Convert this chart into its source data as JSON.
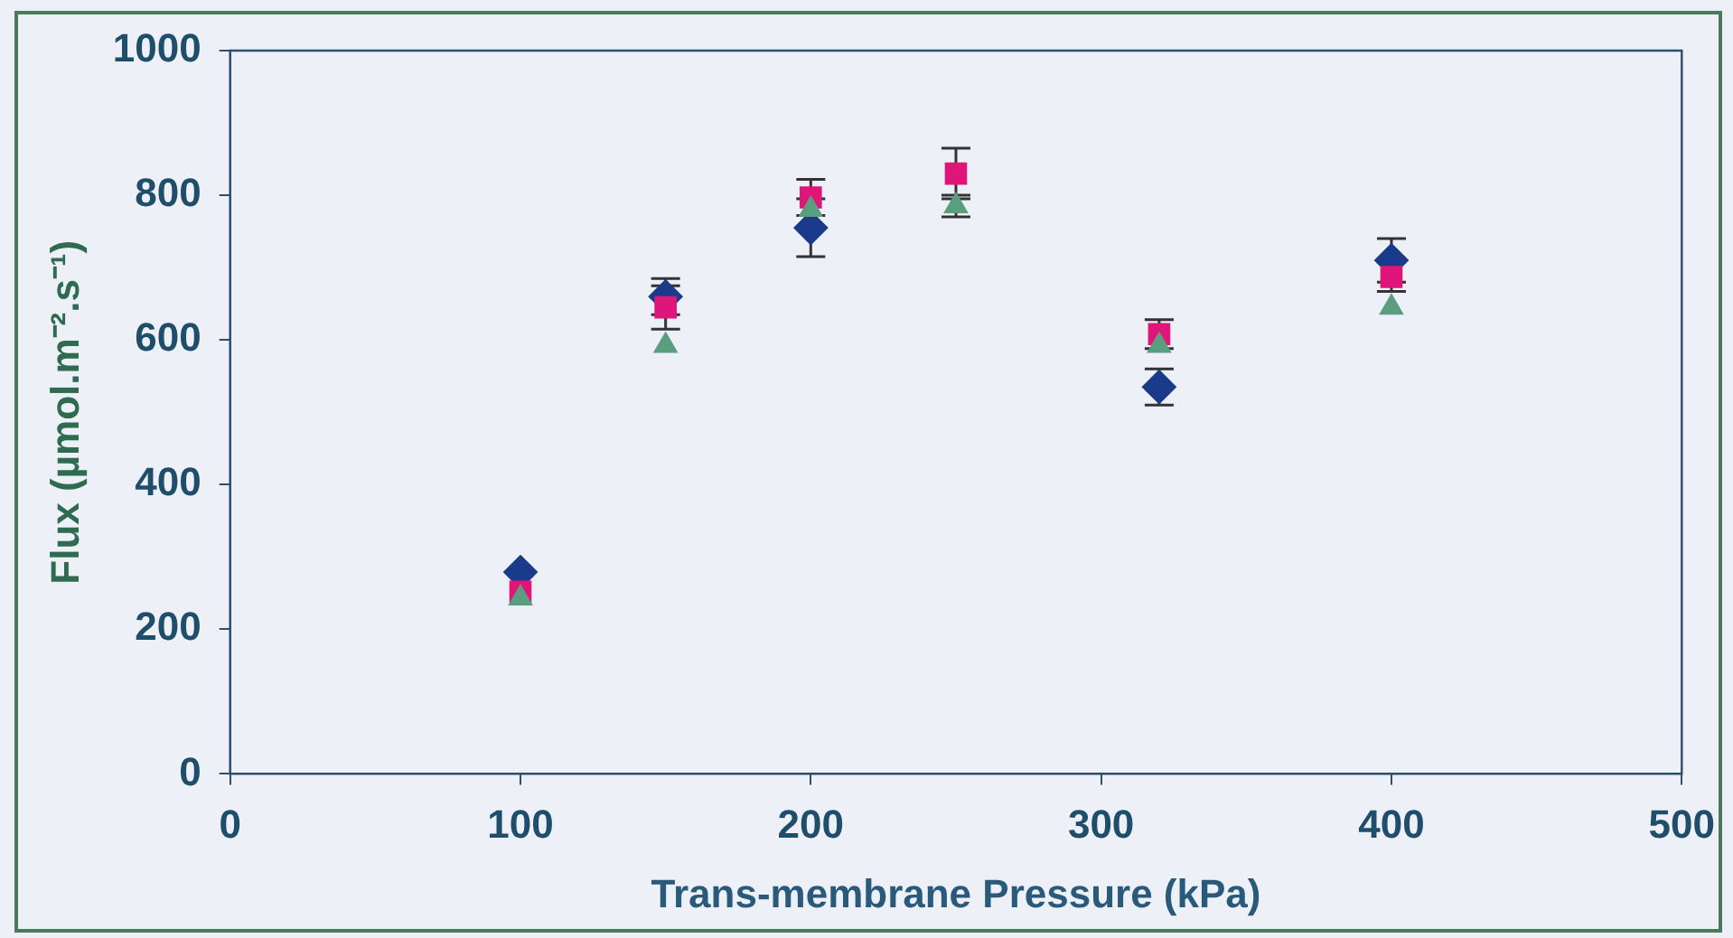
{
  "chart_data": {
    "type": "scatter",
    "xlabel": "Trans-membrane Pressure (kPa)",
    "ylabel": "Flux (µmol.m⁻².s⁻¹)",
    "xlim": [
      0,
      500
    ],
    "xticks": [
      0,
      100,
      200,
      300,
      400,
      500
    ],
    "ylim": [
      0,
      1000
    ],
    "yticks": [
      0,
      200,
      400,
      600,
      800,
      1000
    ],
    "grid": false,
    "legend": false,
    "series": [
      {
        "color": "#1a3a8a",
        "marker": "diamond",
        "x": [
          100,
          150,
          200,
          250,
          320,
          400
        ],
        "values": [
          279,
          660,
          755,
          null,
          535,
          710
        ],
        "errors": [
          null,
          25,
          40,
          null,
          25,
          30
        ]
      },
      {
        "color": "#e0157a",
        "marker": "square",
        "x": [
          100,
          150,
          200,
          250,
          320,
          400
        ],
        "values": [
          252,
          645,
          797,
          830,
          608,
          687
        ],
        "errors": [
          null,
          30,
          25,
          35,
          20,
          20
        ]
      },
      {
        "color": "#5a9e80",
        "marker": "triangle",
        "x": [
          100,
          150,
          200,
          250,
          320,
          400
        ],
        "values": [
          243,
          592,
          780,
          785,
          592,
          645
        ],
        "errors": [
          null,
          null,
          null,
          15,
          null,
          null
        ]
      }
    ]
  }
}
